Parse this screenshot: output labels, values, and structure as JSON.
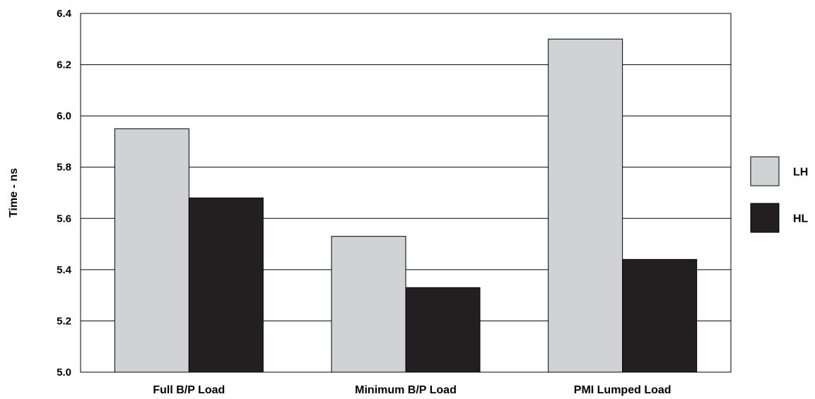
{
  "chart_data": {
    "type": "bar",
    "title": "",
    "xlabel": "",
    "ylabel": "Time - ns",
    "ylim": [
      5.0,
      6.4
    ],
    "yticks": [
      "5.0",
      "5.2",
      "5.4",
      "5.6",
      "5.8",
      "6.0",
      "6.2",
      "6.4"
    ],
    "grid": true,
    "legend_position": "right",
    "categories": [
      "Full B/P Load",
      "Minimum B/P Load",
      "PMI Lumped Load"
    ],
    "series": [
      {
        "name": "LH",
        "color": "#d0d2d4",
        "values": [
          5.95,
          5.53,
          6.3
        ]
      },
      {
        "name": "HL",
        "color": "#231f20",
        "values": [
          5.68,
          5.33,
          5.44
        ]
      }
    ]
  }
}
